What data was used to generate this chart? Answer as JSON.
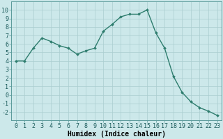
{
  "x": [
    0,
    1,
    2,
    3,
    4,
    5,
    6,
    7,
    8,
    9,
    10,
    11,
    12,
    13,
    14,
    15,
    16,
    17,
    18,
    19,
    20,
    21,
    22,
    23
  ],
  "y": [
    4,
    4,
    5.5,
    6.7,
    6.3,
    5.8,
    5.5,
    4.8,
    5.2,
    5.5,
    7.5,
    8.3,
    9.2,
    9.5,
    9.5,
    10.0,
    7.3,
    5.5,
    2.2,
    0.3,
    -0.8,
    -1.5,
    -1.9,
    -2.4
  ],
  "line_color": "#2e7d6e",
  "marker": "D",
  "marker_size": 2.0,
  "line_width": 1.0,
  "bg_color": "#cce8ea",
  "grid_color": "#aacdd0",
  "xlabel": "Humidex (Indice chaleur)",
  "xlabel_fontsize": 7,
  "tick_fontsize": 6,
  "ylim": [
    -3,
    11
  ],
  "xlim": [
    -0.5,
    23.5
  ],
  "yticks": [
    -2,
    -1,
    0,
    1,
    2,
    3,
    4,
    5,
    6,
    7,
    8,
    9,
    10
  ],
  "xticks": [
    0,
    1,
    2,
    3,
    4,
    5,
    6,
    7,
    8,
    9,
    10,
    11,
    12,
    13,
    14,
    15,
    16,
    17,
    18,
    19,
    20,
    21,
    22,
    23
  ]
}
